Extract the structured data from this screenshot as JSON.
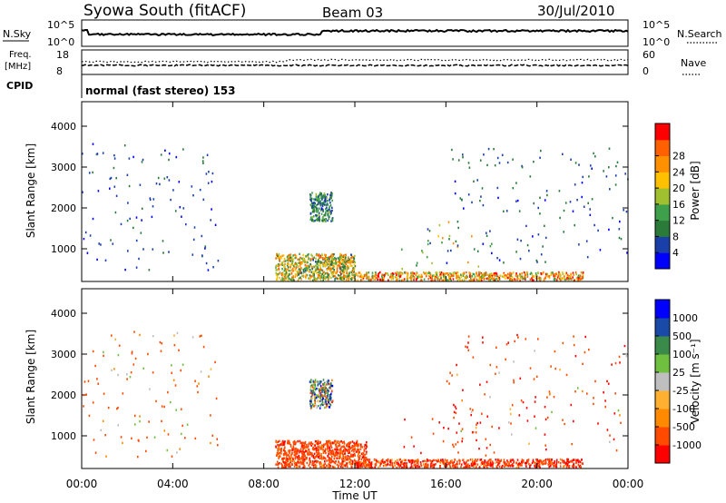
{
  "header": {
    "station": "Syowa South (fitACF)",
    "beam": "Beam 03",
    "date": "30/Jul/2010"
  },
  "nsky_panel": {
    "left_label": "N.Sky",
    "left_ticks": [
      "10^5",
      "10^0"
    ],
    "right_label": "N.Search",
    "right_ticks": [
      "10^5",
      "10^0"
    ]
  },
  "freq_panel": {
    "left_label_1": "Freq.",
    "left_label_2": "[MHz]",
    "left_ticks": [
      "18",
      "8"
    ],
    "right_label": "Nave",
    "right_ticks": [
      "60",
      "0"
    ]
  },
  "cpid": {
    "label": "CPID",
    "text": "normal (fast stereo) 153"
  },
  "colors": {
    "power_scale": [
      "#0000ff",
      "#1a3fa8",
      "#2a7a3a",
      "#3ea04a",
      "#a0c030",
      "#ffc000",
      "#ff9000",
      "#ff6000",
      "#ff0000"
    ],
    "velocity_scale": [
      "#ff0000",
      "#ff4a00",
      "#ff8a00",
      "#ffb030",
      "#bfbfbf",
      "#70c040",
      "#3a8a4a",
      "#1a4aa8",
      "#0000ff"
    ]
  },
  "chart_data": [
    {
      "type": "heatmap",
      "panel": "power",
      "xlabel": "",
      "ylabel": "Slant Range [km]",
      "y_ticks": [
        "1000",
        "2000",
        "3000",
        "4000"
      ],
      "ylim": [
        200,
        4600
      ],
      "xlim": [
        0,
        24
      ],
      "colorbar": {
        "label": "Power [dB]",
        "ticks": [
          "4",
          "8",
          "12",
          "16",
          "20",
          "24",
          "28"
        ],
        "range": [
          0,
          30
        ]
      },
      "scatter_regions": [
        {
          "t0": 0.0,
          "t1": 6.0,
          "r0": 500,
          "r1": 3600,
          "min": 2,
          "max": 8
        },
        {
          "t0": 8.5,
          "t1": 12.0,
          "r0": 250,
          "r1": 900,
          "min": 6,
          "max": 26
        },
        {
          "t0": 10.0,
          "t1": 11.0,
          "r0": 1700,
          "r1": 2400,
          "min": 3,
          "max": 14
        },
        {
          "t0": 12.0,
          "t1": 22.0,
          "r0": 250,
          "r1": 450,
          "min": 10,
          "max": 30
        },
        {
          "t0": 14.0,
          "t1": 18.0,
          "r0": 500,
          "r1": 1700,
          "min": 4,
          "max": 24
        },
        {
          "t0": 16.0,
          "t1": 24.0,
          "r0": 600,
          "r1": 3500,
          "min": 2,
          "max": 10
        }
      ]
    },
    {
      "type": "heatmap",
      "panel": "velocity",
      "xlabel": "Time UT",
      "ylabel": "Slant Range [km]",
      "x_ticks": [
        "00:00",
        "04:00",
        "08:00",
        "12:00",
        "16:00",
        "20:00",
        "00:00"
      ],
      "y_ticks": [
        "1000",
        "2000",
        "3000",
        "4000"
      ],
      "ylim": [
        200,
        4600
      ],
      "xlim": [
        0,
        24
      ],
      "colorbar": {
        "label": "Velocity [m s⁻¹]",
        "ticks": [
          "1000",
          "500",
          "100",
          "25",
          "-25",
          "-100",
          "-500",
          "-1000"
        ]
      },
      "scatter_regions": [
        {
          "t0": 0.0,
          "t1": 6.0,
          "r0": 500,
          "r1": 3600,
          "min": -500,
          "max": 100
        },
        {
          "t0": 8.5,
          "t1": 12.5,
          "r0": 250,
          "r1": 900,
          "min": -600,
          "max": -50
        },
        {
          "t0": 10.0,
          "t1": 11.0,
          "r0": 1700,
          "r1": 2400,
          "min": -200,
          "max": 600
        },
        {
          "t0": 12.0,
          "t1": 22.0,
          "r0": 250,
          "r1": 450,
          "min": -800,
          "max": -20
        },
        {
          "t0": 14.0,
          "t1": 18.0,
          "r0": 500,
          "r1": 1700,
          "min": -900,
          "max": -100
        },
        {
          "t0": 16.0,
          "t1": 24.0,
          "r0": 600,
          "r1": 3500,
          "min": -700,
          "max": 50
        }
      ]
    }
  ]
}
